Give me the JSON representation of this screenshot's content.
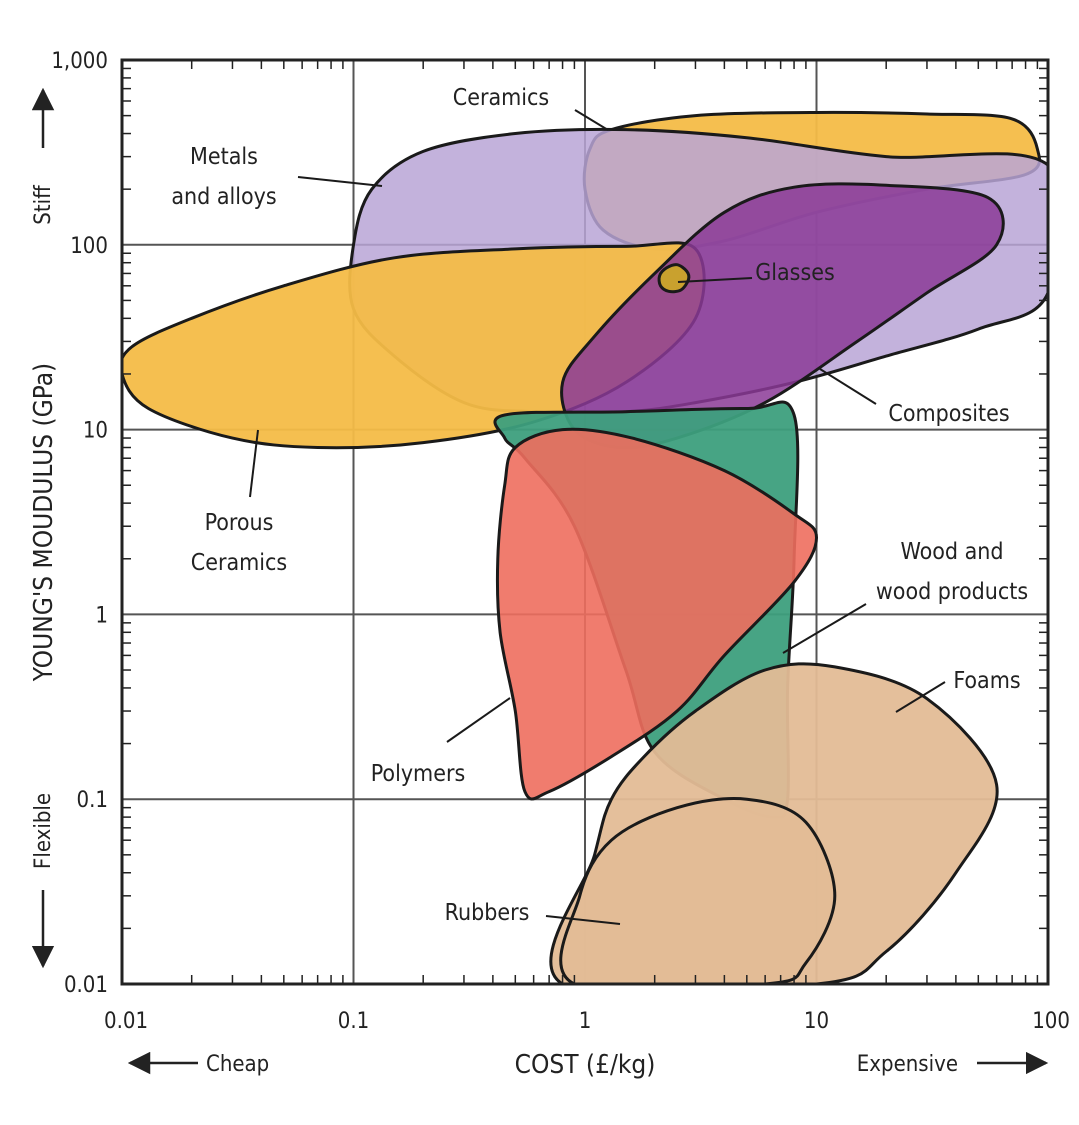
{
  "chart_data": {
    "type": "bubble",
    "title": "",
    "xlabel": "COST (£/kg)",
    "ylabel": "YOUNG'S MOUDULUS (GPa)",
    "x_scale": "log",
    "y_scale": "log",
    "xlim": [
      0.01,
      100
    ],
    "ylim": [
      0.01,
      1000
    ],
    "grid": true,
    "x_ticks": [
      "0.01",
      "0.1",
      "1",
      "10",
      "100"
    ],
    "y_ticks": [
      "1,000",
      "100",
      "10",
      "1",
      "0.1",
      "0.01"
    ],
    "direction_labels": {
      "x_low": "Cheap",
      "x_high": "Expensive",
      "y_high": "Stiff",
      "y_low": "Flexible"
    },
    "series": [
      {
        "name": "Ceramics",
        "label": "Ceramics",
        "color": "#F4BC47",
        "opacity": 0.95,
        "cost_range": [
          1.3,
          100
        ],
        "modulus_range": [
          100,
          500
        ],
        "outline": [
          [
            1.3,
            420
          ],
          [
            3,
            500
          ],
          [
            10,
            520
          ],
          [
            30,
            510
          ],
          [
            70,
            480
          ],
          [
            90,
            330
          ],
          [
            80,
            240
          ],
          [
            30,
            200
          ],
          [
            10,
            150
          ],
          [
            4,
            105
          ],
          [
            2,
            95
          ],
          [
            1.2,
            120
          ],
          [
            1.0,
            200
          ],
          [
            1.05,
            330
          ]
        ]
      },
      {
        "name": "Metals and alloys",
        "label": "Metals\nand alloys",
        "color": "#B8A4D6",
        "opacity": 0.85,
        "cost_range": [
          0.1,
          100
        ],
        "modulus_range": [
          12,
          420
        ],
        "outline": [
          [
            0.1,
            100
          ],
          [
            0.12,
            200
          ],
          [
            0.2,
            320
          ],
          [
            0.5,
            400
          ],
          [
            1.5,
            420
          ],
          [
            5,
            380
          ],
          [
            20,
            300
          ],
          [
            100,
            270
          ],
          [
            100,
            55
          ],
          [
            50,
            35
          ],
          [
            20,
            25
          ],
          [
            8,
            18
          ],
          [
            3,
            14
          ],
          [
            1.5,
            12.5
          ],
          [
            0.6,
            12.5
          ],
          [
            0.3,
            14
          ],
          [
            0.15,
            25
          ],
          [
            0.1,
            45
          ]
        ]
      },
      {
        "name": "Porous Ceramics",
        "label": "Porous\nCeramics",
        "color": "#F4BC47",
        "opacity": 0.95,
        "cost_range": [
          0.01,
          4
        ],
        "modulus_range": [
          8,
          100
        ],
        "outline": [
          [
            0.01,
            20
          ],
          [
            0.011,
            28
          ],
          [
            0.02,
            40
          ],
          [
            0.05,
            60
          ],
          [
            0.15,
            85
          ],
          [
            0.5,
            95
          ],
          [
            1.5,
            98
          ],
          [
            3,
            95
          ],
          [
            3,
            40
          ],
          [
            1.5,
            18
          ],
          [
            0.6,
            11
          ],
          [
            0.2,
            8.5
          ],
          [
            0.07,
            8
          ],
          [
            0.03,
            9
          ],
          [
            0.013,
            13
          ]
        ]
      },
      {
        "name": "Composites",
        "label": "Composites",
        "color": "#8B3A96",
        "opacity": 0.85,
        "cost_range": [
          0.8,
          60
        ],
        "modulus_range": [
          7,
          220
        ],
        "outline": [
          [
            0.8,
            18
          ],
          [
            1.1,
            32
          ],
          [
            2,
            70
          ],
          [
            4,
            150
          ],
          [
            8,
            205
          ],
          [
            20,
            210
          ],
          [
            55,
            180
          ],
          [
            60,
            100
          ],
          [
            30,
            55
          ],
          [
            15,
            30
          ],
          [
            6,
            14
          ],
          [
            2.5,
            9
          ],
          [
            1.4,
            8
          ],
          [
            0.9,
            10
          ]
        ]
      },
      {
        "name": "Glasses",
        "label": "Glasses",
        "color": "#C9A12E",
        "opacity": 1.0,
        "cost_range": [
          2.1,
          2.8
        ],
        "modulus_range": [
          55,
          80
        ],
        "outline": [
          [
            2.1,
            68
          ],
          [
            2.25,
            75
          ],
          [
            2.5,
            78
          ],
          [
            2.75,
            72
          ],
          [
            2.8,
            65
          ],
          [
            2.6,
            57
          ],
          [
            2.3,
            56
          ],
          [
            2.12,
            60
          ]
        ]
      },
      {
        "name": "Wood and wood products",
        "label": "Wood and\nwood products",
        "color": "#3D9F7D",
        "opacity": 0.95,
        "cost_range": [
          0.4,
          8
        ],
        "modulus_range": [
          0.07,
          14
        ],
        "outline": [
          [
            0.45,
            12
          ],
          [
            1.5,
            12.5
          ],
          [
            5,
            13
          ],
          [
            8,
            12
          ],
          [
            8,
            2
          ],
          [
            7.5,
            0.4
          ],
          [
            7.5,
            0.1
          ],
          [
            6.5,
            0.08
          ],
          [
            4,
            0.1
          ],
          [
            2,
            0.18
          ],
          [
            1.5,
            0.5
          ],
          [
            0.9,
            3
          ],
          [
            0.55,
            7
          ],
          [
            0.45,
            9
          ]
        ]
      },
      {
        "name": "Polymers",
        "label": "Polymers",
        "color": "#EE6E5E",
        "opacity": 0.9,
        "cost_range": [
          0.4,
          10
        ],
        "modulus_range": [
          0.1,
          10
        ],
        "outline": [
          [
            0.45,
            5
          ],
          [
            0.5,
            8
          ],
          [
            0.8,
            10
          ],
          [
            1.6,
            9
          ],
          [
            4,
            6
          ],
          [
            8,
            3.5
          ],
          [
            10,
            2.6
          ],
          [
            8,
            1.5
          ],
          [
            4,
            0.6
          ],
          [
            2.5,
            0.3
          ],
          [
            1.3,
            0.17
          ],
          [
            0.7,
            0.11
          ],
          [
            0.55,
            0.11
          ],
          [
            0.5,
            0.3
          ],
          [
            0.43,
            0.8
          ],
          [
            0.42,
            2
          ]
        ]
      },
      {
        "name": "Foams",
        "label": "Foams",
        "color": "#E3BC96",
        "opacity": 0.95,
        "cost_range": [
          0.8,
          70
        ],
        "modulus_range": [
          0.01,
          0.55
        ],
        "outline": [
          [
            0.8,
            0.01
          ],
          [
            1.1,
            0.05
          ],
          [
            1.3,
            0.1
          ],
          [
            1.8,
            0.17
          ],
          [
            3,
            0.3
          ],
          [
            6,
            0.5
          ],
          [
            12,
            0.52
          ],
          [
            30,
            0.35
          ],
          [
            60,
            0.12
          ],
          [
            40,
            0.04
          ],
          [
            20,
            0.015
          ],
          [
            10,
            0.01
          ]
        ]
      },
      {
        "name": "Rubbers",
        "label": "Rubbers",
        "color": "#E3BC96",
        "opacity": 0.95,
        "cost_range": [
          0.8,
          12
        ],
        "modulus_range": [
          0.01,
          0.1
        ],
        "outline": [
          [
            0.9,
            0.01
          ],
          [
            0.95,
            0.03
          ],
          [
            1.3,
            0.06
          ],
          [
            2.5,
            0.09
          ],
          [
            5,
            0.1
          ],
          [
            9,
            0.075
          ],
          [
            12,
            0.03
          ],
          [
            9,
            0.013
          ],
          [
            6,
            0.01
          ]
        ]
      }
    ],
    "draw_order": [
      "Ceramics",
      "Metals and alloys",
      "Porous Ceramics",
      "Composites",
      "Glasses",
      "Wood and wood products",
      "Polymers",
      "Foams",
      "Rubbers"
    ]
  }
}
